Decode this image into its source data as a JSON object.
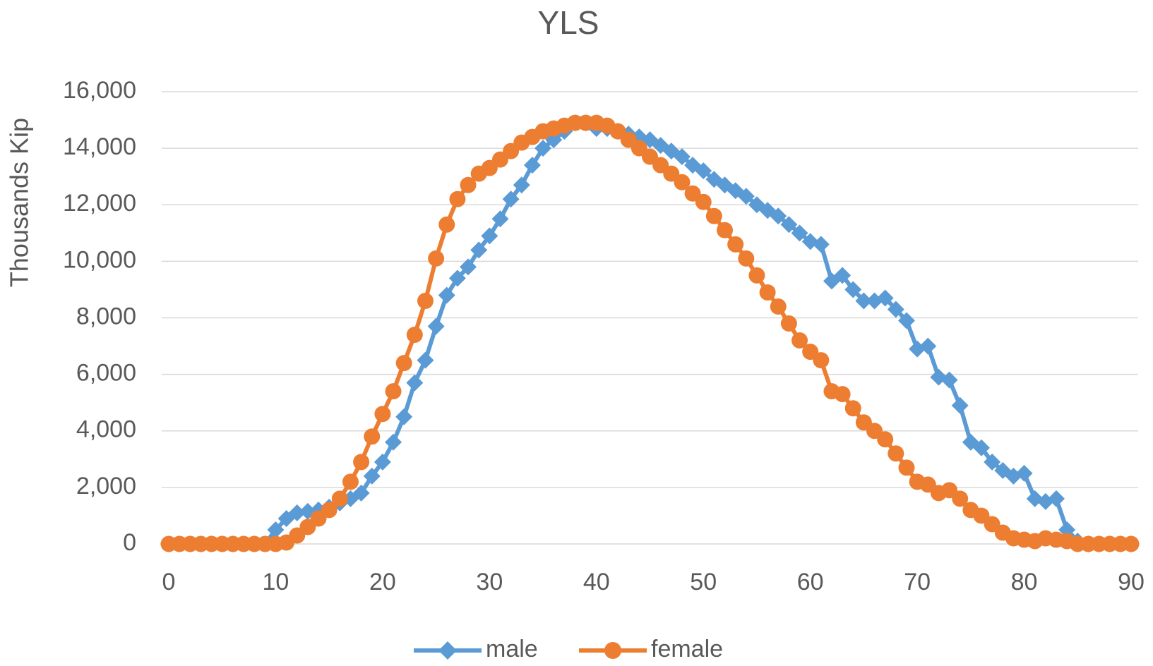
{
  "chart_data": {
    "type": "line",
    "title": "YLS",
    "y_label": "Thousands Kip",
    "x": [
      0,
      1,
      2,
      3,
      4,
      5,
      6,
      7,
      8,
      9,
      10,
      11,
      12,
      13,
      14,
      15,
      16,
      17,
      18,
      19,
      20,
      21,
      22,
      23,
      24,
      25,
      26,
      27,
      28,
      29,
      30,
      31,
      32,
      33,
      34,
      35,
      36,
      37,
      38,
      39,
      40,
      41,
      42,
      43,
      44,
      45,
      46,
      47,
      48,
      49,
      50,
      51,
      52,
      53,
      54,
      55,
      56,
      57,
      58,
      59,
      60,
      61,
      62,
      63,
      64,
      65,
      66,
      67,
      68,
      69,
      70,
      71,
      72,
      73,
      74,
      75,
      76,
      77,
      78,
      79,
      80,
      81,
      82,
      83,
      84,
      85,
      86,
      87,
      88,
      89,
      90
    ],
    "series": [
      {
        "name": "male",
        "color": "#5b9bd5",
        "marker": "diamond",
        "values": [
          0,
          0,
          0,
          0,
          0,
          0,
          0,
          0,
          0,
          0,
          500,
          900,
          1100,
          1150,
          1200,
          1300,
          1450,
          1600,
          1800,
          2400,
          2900,
          3600,
          4500,
          5700,
          6500,
          7700,
          8800,
          9400,
          9800,
          10400,
          10900,
          11500,
          12200,
          12700,
          13400,
          14000,
          14300,
          14600,
          14900,
          14900,
          14700,
          14700,
          14600,
          14500,
          14400,
          14300,
          14100,
          13900,
          13700,
          13400,
          13200,
          12900,
          12700,
          12500,
          12300,
          12000,
          11800,
          11600,
          11300,
          11000,
          10700,
          10600,
          9300,
          9500,
          9000,
          8600,
          8600,
          8700,
          8300,
          7900,
          6900,
          7000,
          5900,
          5800,
          4900,
          3600,
          3400,
          2900,
          2600,
          2400,
          2500,
          1600,
          1500,
          1600,
          500,
          100,
          0,
          0,
          0,
          0,
          0
        ]
      },
      {
        "name": "female",
        "color": "#ed7d31",
        "marker": "circle",
        "values": [
          0,
          0,
          0,
          0,
          0,
          0,
          0,
          0,
          0,
          0,
          0,
          50,
          300,
          600,
          900,
          1200,
          1600,
          2200,
          2900,
          3800,
          4600,
          5400,
          6400,
          7400,
          8600,
          10100,
          11300,
          12200,
          12700,
          13100,
          13300,
          13600,
          13900,
          14200,
          14400,
          14600,
          14700,
          14800,
          14900,
          14900,
          14900,
          14800,
          14600,
          14300,
          14000,
          13700,
          13400,
          13100,
          12800,
          12400,
          12100,
          11600,
          11100,
          10600,
          10100,
          9500,
          8900,
          8400,
          7800,
          7200,
          6800,
          6500,
          5400,
          5300,
          4800,
          4300,
          4000,
          3700,
          3200,
          2700,
          2200,
          2100,
          1800,
          1900,
          1600,
          1200,
          1000,
          700,
          400,
          200,
          150,
          100,
          200,
          150,
          100,
          0,
          0,
          0,
          0,
          0,
          0
        ]
      }
    ],
    "xlim": [
      0,
      90
    ],
    "xticks": [
      0,
      10,
      20,
      30,
      40,
      50,
      60,
      70,
      80,
      90
    ],
    "ylim": [
      0,
      16000
    ],
    "yticks": [
      0,
      {
        "value": 2000,
        "label": "2,000"
      },
      {
        "value": 4000,
        "label": "4,000"
      },
      {
        "value": 6000,
        "label": "6,000"
      },
      {
        "value": 8000,
        "label": "8,000"
      },
      {
        "value": 10000,
        "label": "10,000"
      },
      {
        "value": 12000,
        "label": "12,000"
      },
      {
        "value": 14000,
        "label": "14,000"
      },
      {
        "value": 16000,
        "label": "16,000"
      }
    ],
    "grid": true,
    "legend": "bottom"
  }
}
